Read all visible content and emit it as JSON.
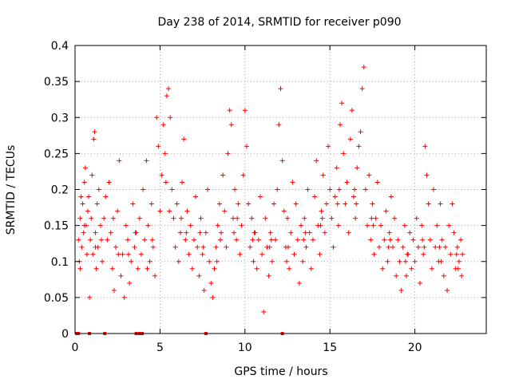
{
  "chart_data": {
    "type": "scatter",
    "title": "Day 238 of 2014, SRMTID for receiver p090",
    "xlabel": "GPS time / hours",
    "ylabel": "SRMTID / TECUs",
    "xlim": [
      0,
      24.2
    ],
    "ylim": [
      0,
      0.4
    ],
    "xticks": [
      0,
      5,
      10,
      15,
      20
    ],
    "yticks": [
      0,
      0.05,
      0.1,
      0.15,
      0.2,
      0.25,
      0.3,
      0.35,
      0.4
    ],
    "xtick_labels": [
      "0",
      "5",
      "10",
      "15",
      "20"
    ],
    "ytick_labels": [
      "0",
      "0.05",
      "0.1",
      "0.15",
      "0.2",
      "0.25",
      "0.3",
      "0.35",
      "0.4"
    ],
    "grid": true,
    "marker": "plus",
    "series_color": "#ff0000",
    "zero_markers_x": [
      0.1,
      0.2,
      0.85,
      1.75,
      3.6,
      3.8,
      3.95,
      7.7,
      12.2
    ],
    "points": [
      [
        0.2,
        0.13
      ],
      [
        0.25,
        0.1
      ],
      [
        0.3,
        0.16
      ],
      [
        0.35,
        0.19
      ],
      [
        0.4,
        0.12
      ],
      [
        0.45,
        0.18
      ],
      [
        0.5,
        0.14
      ],
      [
        0.55,
        0.21
      ],
      [
        0.6,
        0.23
      ],
      [
        0.65,
        0.15
      ],
      [
        0.7,
        0.11
      ],
      [
        0.75,
        0.17
      ],
      [
        0.8,
        0.19
      ],
      [
        0.85,
        0.05
      ],
      [
        0.9,
        0.13
      ],
      [
        0.95,
        0.16
      ],
      [
        1.0,
        0.22
      ],
      [
        1.05,
        0.11
      ],
      [
        1.1,
        0.27
      ],
      [
        1.15,
        0.28
      ],
      [
        1.2,
        0.14
      ],
      [
        1.25,
        0.09
      ],
      [
        1.3,
        0.18
      ],
      [
        1.35,
        0.12
      ],
      [
        1.4,
        0.2
      ],
      [
        1.5,
        0.15
      ],
      [
        1.6,
        0.1
      ],
      [
        1.7,
        0.16
      ],
      [
        1.8,
        0.19
      ],
      [
        1.9,
        0.13
      ],
      [
        2.0,
        0.21
      ],
      [
        2.1,
        0.14
      ],
      [
        2.2,
        0.09
      ],
      [
        2.3,
        0.06
      ],
      [
        2.4,
        0.12
      ],
      [
        2.5,
        0.17
      ],
      [
        2.6,
        0.24
      ],
      [
        2.7,
        0.08
      ],
      [
        2.8,
        0.11
      ],
      [
        2.9,
        0.05
      ],
      [
        3.0,
        0.15
      ],
      [
        3.1,
        0.13
      ],
      [
        3.2,
        0.07
      ],
      [
        3.3,
        0.1
      ],
      [
        3.4,
        0.18
      ],
      [
        3.5,
        0.12
      ],
      [
        3.6,
        0.14
      ],
      [
        3.7,
        0.09
      ],
      [
        3.8,
        0.16
      ],
      [
        3.9,
        0.11
      ],
      [
        4.0,
        0.2
      ],
      [
        4.1,
        0.13
      ],
      [
        4.2,
        0.24
      ],
      [
        4.3,
        0.15
      ],
      [
        4.4,
        0.1
      ],
      [
        4.5,
        0.18
      ],
      [
        4.6,
        0.12
      ],
      [
        4.7,
        0.08
      ],
      [
        4.8,
        0.3
      ],
      [
        4.9,
        0.26
      ],
      [
        5.0,
        0.17
      ],
      [
        5.1,
        0.22
      ],
      [
        5.2,
        0.29
      ],
      [
        5.3,
        0.25
      ],
      [
        5.4,
        0.33
      ],
      [
        5.5,
        0.34
      ],
      [
        5.6,
        0.3
      ],
      [
        5.7,
        0.2
      ],
      [
        5.8,
        0.16
      ],
      [
        5.9,
        0.12
      ],
      [
        6.0,
        0.18
      ],
      [
        6.1,
        0.1
      ],
      [
        6.2,
        0.14
      ],
      [
        6.3,
        0.21
      ],
      [
        6.4,
        0.27
      ],
      [
        6.5,
        0.13
      ],
      [
        6.6,
        0.17
      ],
      [
        6.7,
        0.11
      ],
      [
        6.8,
        0.15
      ],
      [
        6.9,
        0.09
      ],
      [
        7.0,
        0.13
      ],
      [
        7.1,
        0.19
      ],
      [
        7.2,
        0.12
      ],
      [
        7.3,
        0.08
      ],
      [
        7.4,
        0.16
      ],
      [
        7.5,
        0.11
      ],
      [
        7.6,
        0.06
      ],
      [
        7.7,
        0.14
      ],
      [
        7.8,
        0.2
      ],
      [
        7.9,
        0.1
      ],
      [
        8.0,
        0.07
      ],
      [
        8.1,
        0.05
      ],
      [
        8.2,
        0.09
      ],
      [
        8.3,
        0.12
      ],
      [
        8.4,
        0.15
      ],
      [
        8.5,
        0.18
      ],
      [
        8.6,
        0.14
      ],
      [
        8.7,
        0.22
      ],
      [
        8.8,
        0.17
      ],
      [
        8.9,
        0.12
      ],
      [
        9.0,
        0.25
      ],
      [
        9.1,
        0.31
      ],
      [
        9.2,
        0.29
      ],
      [
        9.3,
        0.16
      ],
      [
        9.4,
        0.2
      ],
      [
        9.5,
        0.13
      ],
      [
        9.6,
        0.18
      ],
      [
        9.7,
        0.11
      ],
      [
        9.8,
        0.15
      ],
      [
        9.9,
        0.22
      ],
      [
        10.0,
        0.31
      ],
      [
        10.1,
        0.26
      ],
      [
        10.2,
        0.18
      ],
      [
        10.3,
        0.12
      ],
      [
        10.4,
        0.16
      ],
      [
        10.5,
        0.1
      ],
      [
        10.6,
        0.14
      ],
      [
        10.7,
        0.09
      ],
      [
        10.8,
        0.13
      ],
      [
        10.9,
        0.19
      ],
      [
        11.0,
        0.11
      ],
      [
        11.1,
        0.03
      ],
      [
        11.2,
        0.16
      ],
      [
        11.3,
        0.12
      ],
      [
        11.4,
        0.08
      ],
      [
        11.5,
        0.14
      ],
      [
        11.6,
        0.1
      ],
      [
        11.7,
        0.18
      ],
      [
        11.8,
        0.13
      ],
      [
        11.9,
        0.2
      ],
      [
        12.0,
        0.29
      ],
      [
        12.1,
        0.34
      ],
      [
        12.2,
        0.24
      ],
      [
        12.3,
        0.17
      ],
      [
        12.4,
        0.12
      ],
      [
        12.5,
        0.16
      ],
      [
        12.6,
        0.09
      ],
      [
        12.7,
        0.14
      ],
      [
        12.8,
        0.21
      ],
      [
        12.9,
        0.11
      ],
      [
        13.0,
        0.18
      ],
      [
        13.1,
        0.13
      ],
      [
        13.2,
        0.07
      ],
      [
        13.3,
        0.15
      ],
      [
        13.4,
        0.1
      ],
      [
        13.5,
        0.16
      ],
      [
        13.6,
        0.12
      ],
      [
        13.7,
        0.2
      ],
      [
        13.8,
        0.14
      ],
      [
        13.9,
        0.09
      ],
      [
        14.0,
        0.13
      ],
      [
        14.1,
        0.19
      ],
      [
        14.2,
        0.24
      ],
      [
        14.3,
        0.15
      ],
      [
        14.4,
        0.11
      ],
      [
        14.5,
        0.17
      ],
      [
        14.6,
        0.22
      ],
      [
        14.7,
        0.14
      ],
      [
        14.8,
        0.18
      ],
      [
        14.9,
        0.26
      ],
      [
        15.0,
        0.2
      ],
      [
        15.1,
        0.16
      ],
      [
        15.2,
        0.12
      ],
      [
        15.3,
        0.19
      ],
      [
        15.4,
        0.23
      ],
      [
        15.5,
        0.15
      ],
      [
        15.6,
        0.29
      ],
      [
        15.7,
        0.32
      ],
      [
        15.8,
        0.25
      ],
      [
        15.9,
        0.18
      ],
      [
        16.0,
        0.21
      ],
      [
        16.1,
        0.14
      ],
      [
        16.2,
        0.27
      ],
      [
        16.3,
        0.31
      ],
      [
        16.4,
        0.19
      ],
      [
        16.5,
        0.16
      ],
      [
        16.6,
        0.23
      ],
      [
        16.7,
        0.26
      ],
      [
        16.8,
        0.28
      ],
      [
        16.9,
        0.34
      ],
      [
        17.0,
        0.37
      ],
      [
        17.1,
        0.2
      ],
      [
        17.2,
        0.15
      ],
      [
        17.3,
        0.22
      ],
      [
        17.4,
        0.13
      ],
      [
        17.5,
        0.18
      ],
      [
        17.6,
        0.11
      ],
      [
        17.7,
        0.16
      ],
      [
        17.8,
        0.21
      ],
      [
        17.9,
        0.12
      ],
      [
        18.0,
        0.15
      ],
      [
        18.1,
        0.09
      ],
      [
        18.2,
        0.13
      ],
      [
        18.3,
        0.17
      ],
      [
        18.4,
        0.1
      ],
      [
        18.5,
        0.14
      ],
      [
        18.6,
        0.19
      ],
      [
        18.7,
        0.12
      ],
      [
        18.8,
        0.16
      ],
      [
        18.9,
        0.08
      ],
      [
        19.0,
        0.13
      ],
      [
        19.1,
        0.1
      ],
      [
        19.2,
        0.06
      ],
      [
        19.3,
        0.12
      ],
      [
        19.4,
        0.15
      ],
      [
        19.5,
        0.08
      ],
      [
        19.6,
        0.11
      ],
      [
        19.7,
        0.14
      ],
      [
        19.8,
        0.09
      ],
      [
        19.9,
        0.13
      ],
      [
        20.0,
        0.1
      ],
      [
        20.1,
        0.16
      ],
      [
        20.2,
        0.12
      ],
      [
        20.3,
        0.07
      ],
      [
        20.4,
        0.15
      ],
      [
        20.5,
        0.11
      ],
      [
        20.6,
        0.26
      ],
      [
        20.7,
        0.22
      ],
      [
        20.8,
        0.18
      ],
      [
        20.9,
        0.13
      ],
      [
        21.0,
        0.09
      ],
      [
        21.1,
        0.2
      ],
      [
        21.2,
        0.12
      ],
      [
        21.3,
        0.15
      ],
      [
        21.4,
        0.1
      ],
      [
        21.5,
        0.18
      ],
      [
        21.6,
        0.13
      ],
      [
        21.7,
        0.08
      ],
      [
        21.8,
        0.12
      ],
      [
        21.9,
        0.06
      ],
      [
        22.0,
        0.15
      ],
      [
        22.1,
        0.11
      ],
      [
        22.2,
        0.18
      ],
      [
        22.3,
        0.14
      ],
      [
        22.4,
        0.09
      ],
      [
        22.5,
        0.12
      ],
      [
        22.6,
        0.1
      ],
      [
        22.7,
        0.13
      ],
      [
        22.75,
        0.08
      ],
      [
        22.8,
        0.11
      ],
      [
        0.3,
        0.09
      ],
      [
        1.2,
        0.12
      ],
      [
        2.25,
        0.16
      ],
      [
        3.15,
        0.11
      ],
      [
        4.25,
        0.09
      ],
      [
        5.35,
        0.21
      ],
      [
        6.25,
        0.16
      ],
      [
        7.35,
        0.14
      ],
      [
        8.35,
        0.1
      ],
      [
        9.35,
        0.14
      ],
      [
        10.45,
        0.13
      ],
      [
        11.45,
        0.12
      ],
      [
        12.45,
        0.1
      ],
      [
        13.45,
        0.13
      ],
      [
        14.45,
        0.15
      ],
      [
        15.45,
        0.18
      ],
      [
        16.45,
        0.2
      ],
      [
        17.45,
        0.16
      ],
      [
        18.45,
        0.12
      ],
      [
        19.45,
        0.1
      ],
      [
        20.45,
        0.13
      ],
      [
        21.45,
        0.12
      ],
      [
        22.45,
        0.11
      ],
      [
        0.55,
        0.15
      ],
      [
        1.55,
        0.13
      ],
      [
        2.55,
        0.11
      ],
      [
        3.55,
        0.14
      ],
      [
        4.55,
        0.13
      ],
      [
        5.55,
        0.17
      ],
      [
        6.55,
        0.14
      ],
      [
        7.55,
        0.12
      ],
      [
        8.55,
        0.13
      ],
      [
        9.55,
        0.16
      ],
      [
        10.55,
        0.14
      ],
      [
        11.55,
        0.13
      ],
      [
        12.55,
        0.12
      ],
      [
        13.55,
        0.14
      ],
      [
        14.55,
        0.16
      ],
      [
        15.55,
        0.2
      ],
      [
        16.55,
        0.18
      ],
      [
        17.55,
        0.15
      ],
      [
        18.55,
        0.13
      ],
      [
        19.55,
        0.11
      ],
      [
        20.55,
        0.12
      ],
      [
        21.55,
        0.1
      ],
      [
        22.55,
        0.09
      ]
    ]
  }
}
